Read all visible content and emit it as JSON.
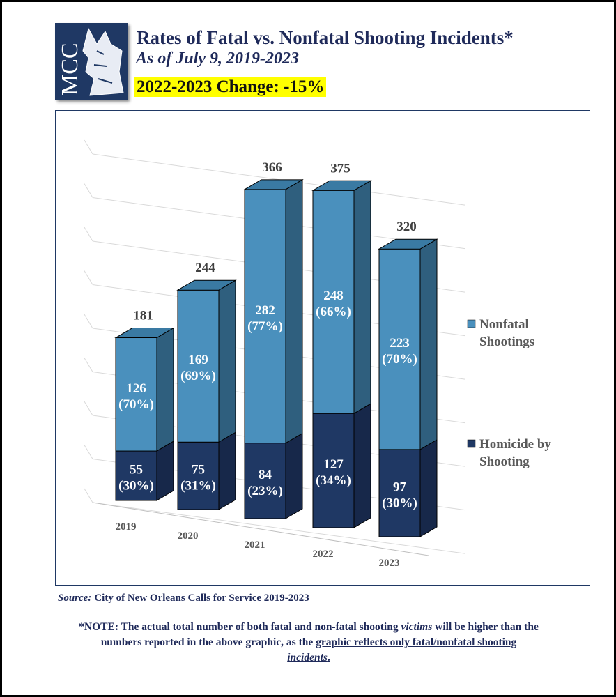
{
  "header": {
    "logo_text": "MCC",
    "title": "Rates of Fatal vs. Nonfatal Shooting Incidents*",
    "subtitle": "As of July 9, 2019-2023",
    "change": "2022-2023 Change: -15%"
  },
  "chart_data": {
    "type": "bar",
    "stacked": true,
    "three_d": true,
    "categories": [
      "2019",
      "2020",
      "2021",
      "2022",
      "2023"
    ],
    "series": [
      {
        "name": "Homicide by Shooting",
        "values": [
          55,
          75,
          84,
          127,
          97
        ],
        "labels": [
          "(30%)",
          "(31%)",
          "(23%)",
          "(34%)",
          "(30%)"
        ],
        "color": "#1f3864"
      },
      {
        "name": "Nonfatal Shootings",
        "values": [
          126,
          169,
          282,
          248,
          223
        ],
        "labels": [
          "(70%)",
          "(69%)",
          "(77%)",
          "(66%)",
          "(70%)"
        ],
        "color": "#4a90bd"
      }
    ],
    "totals": [
      181,
      244,
      366,
      375,
      320
    ],
    "legend_position": "right",
    "grid": true
  },
  "footer": {
    "source_label": "Source:",
    "source_text": "City of New Orleans Calls for Service 2019-2023",
    "note_part1": "*NOTE: The actual total number of both fatal and non-fatal shooting ",
    "note_victims": "victims",
    "note_part2": " will be higher than the numbers reported in the above graphic, as the ",
    "note_underline": "graphic reflects only fatal/nonfatal shooting ",
    "note_incidents": "incidents",
    "note_end": "."
  }
}
